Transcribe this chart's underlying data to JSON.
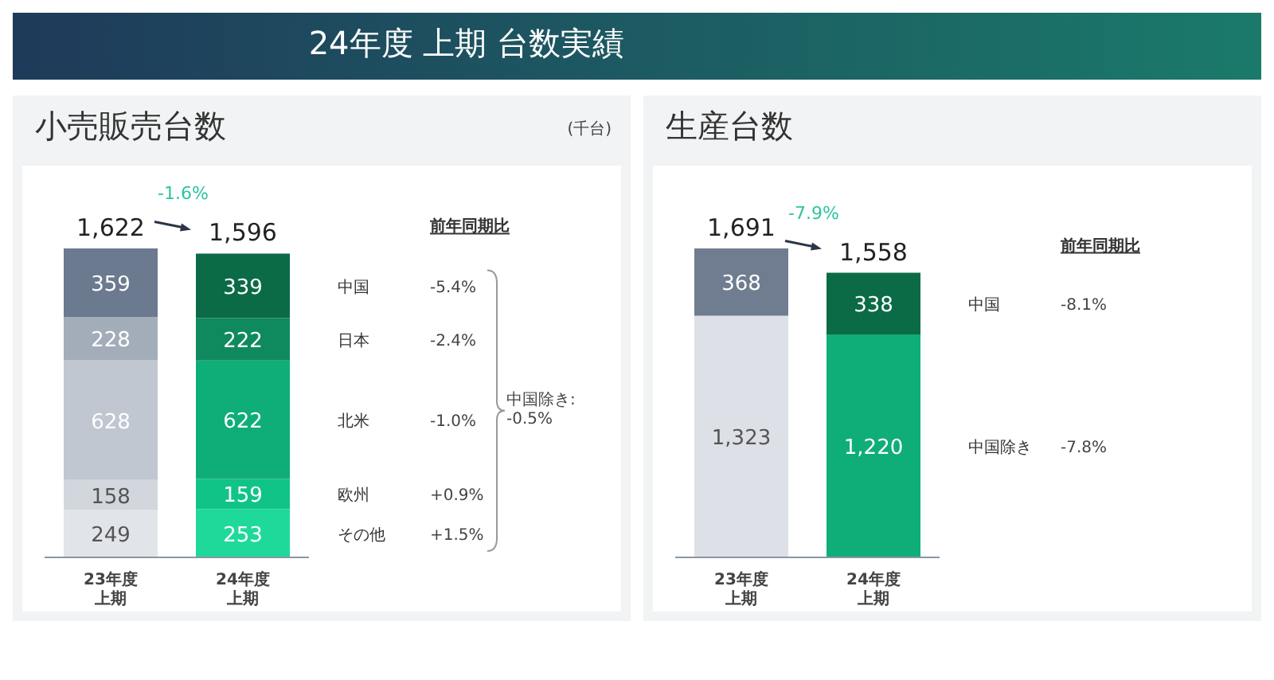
{
  "chart_data": [
    {
      "type": "bar",
      "title": "24年度 上期 台数実績",
      "subtitle": "小売販売台数",
      "ylabel": "(千台)",
      "categories": [
        "23年度上期",
        "24年度上期"
      ],
      "stacked": true,
      "data_labels": true,
      "legend": false,
      "grid": false,
      "tick_labels": "x",
      "totals": [
        "1,622",
        "1,596"
      ],
      "series": [
        {
          "name": "その他",
          "colors": [
            "#e1e4e8",
            "#1fd99b"
          ],
          "values": [
            249,
            253
          ]
        },
        {
          "name": "欧州",
          "colors": [
            "#d2d7dd",
            "#10c487"
          ],
          "values": [
            158,
            159
          ]
        },
        {
          "name": "北米",
          "colors": [
            "#c0c7d1",
            "#0fae78"
          ],
          "values": [
            628,
            622
          ]
        },
        {
          "name": "日本",
          "colors": [
            "#a3adba",
            "#0f8a5e"
          ],
          "values": [
            228,
            222
          ]
        },
        {
          "name": "中国",
          "colors": [
            "#6b7a8f",
            "#0b6b47"
          ],
          "values": [
            359,
            339
          ]
        }
      ],
      "annotations": [
        "-1.6%",
        "前年同期比",
        "+1.5%",
        "+0.9%",
        "-1.0%",
        "-2.4%",
        "-5.4%",
        "中国除き:\n-0.5%"
      ]
    },
    {
      "type": "bar",
      "title": "生産台数",
      "categories": [
        "23年度上期",
        "24年度上期"
      ],
      "stacked": true,
      "data_labels": true,
      "legend": false,
      "grid": false,
      "tick_labels": "x",
      "totals": [
        "1,691",
        "1,558"
      ],
      "series": [
        {
          "name": "中国除き",
          "colors": [
            "#dde1e7",
            "#0fae78"
          ],
          "values": [
            1323,
            1220
          ],
          "value_labels": [
            "1,323",
            "1,220"
          ]
        },
        {
          "name": "中国",
          "colors": [
            "#707d90",
            "#0b6b47"
          ],
          "values": [
            368,
            338
          ]
        }
      ],
      "annotations": [
        "-7.9%",
        "前年同期比",
        "-7.8%",
        "-8.1%"
      ]
    }
  ]
}
